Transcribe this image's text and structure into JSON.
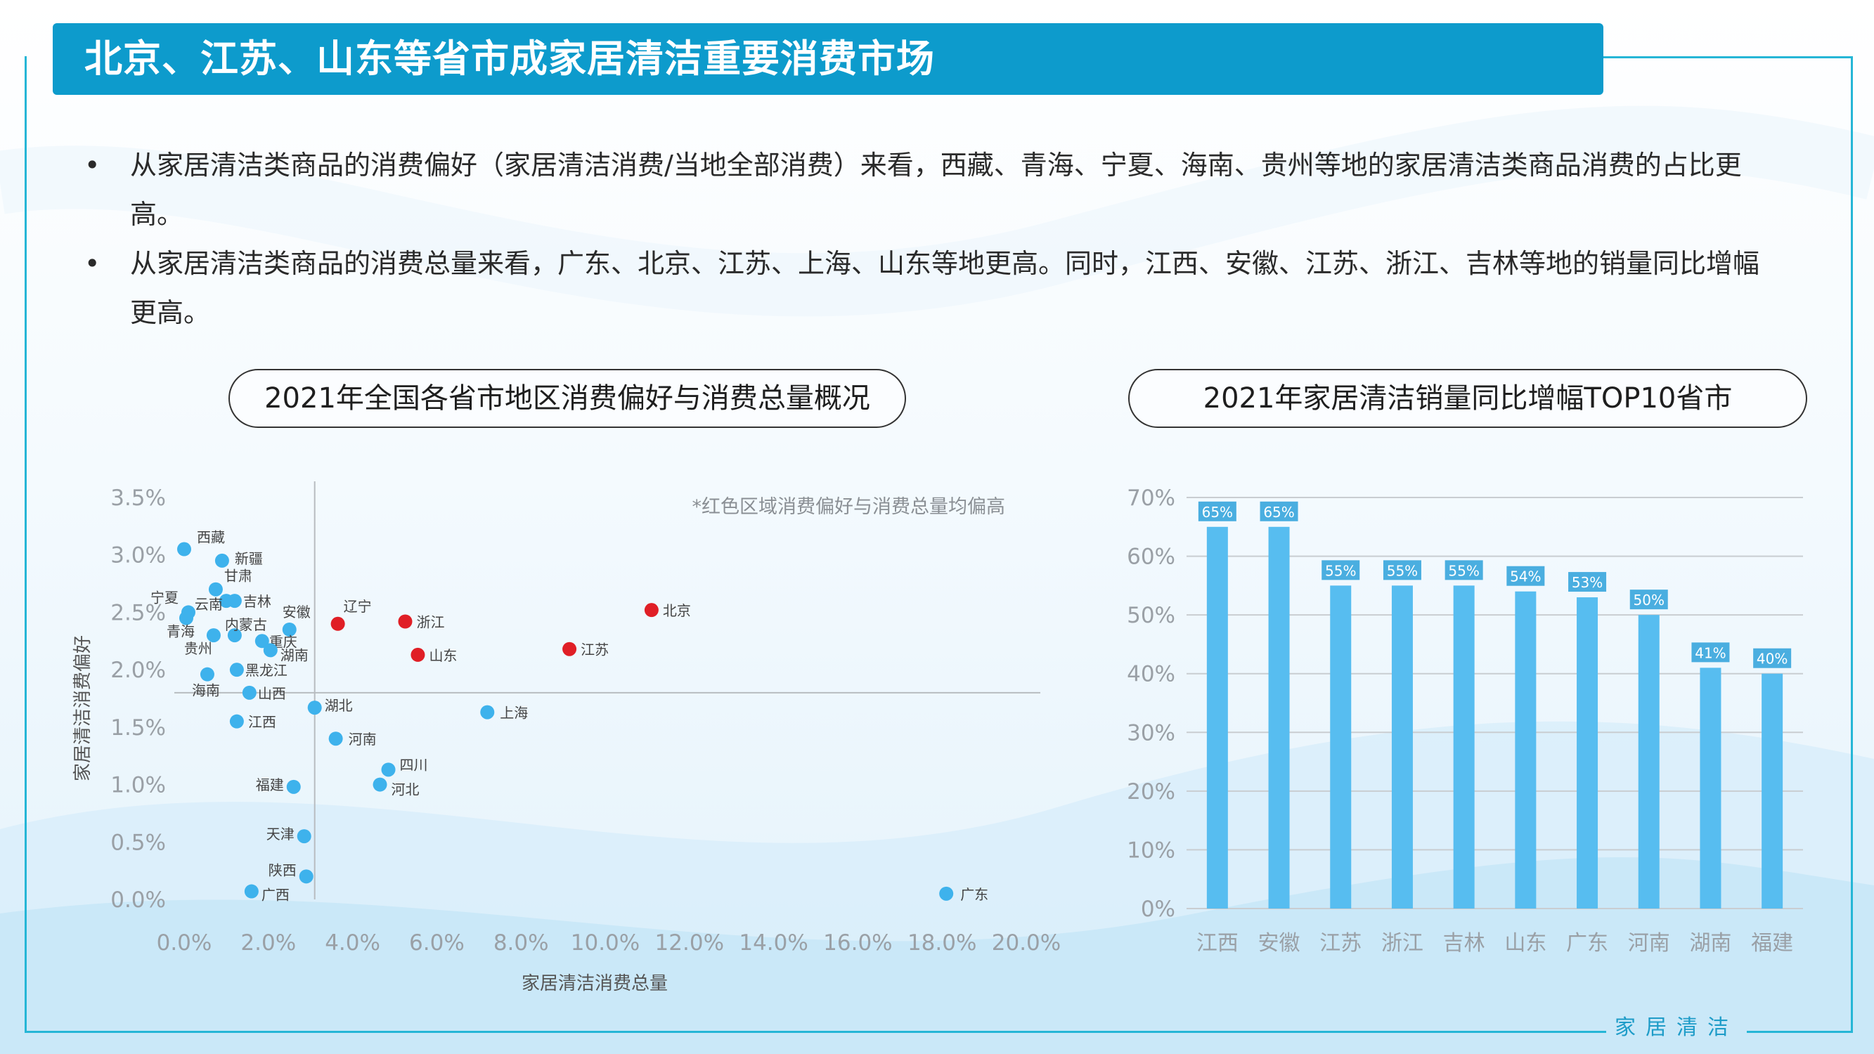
{
  "page": {
    "title": "北京、江苏、山东等省市成家居清洁重要消费市场",
    "bullets": [
      "从家居清洁类商品的消费偏好（家居清洁消费/当地全部消费）来看，西藏、青海、宁夏、海南、贵州等地的家居清洁类商品消费的占比更高。",
      "从家居清洁类商品的消费总量来看，广东、北京、江苏、上海、山东等地更高。同时，江西、安徽、江苏、浙江、吉林等地的销量同比增幅更高。"
    ],
    "footer": "家居清洁"
  },
  "chart_data": [
    {
      "type": "scatter",
      "title": "2021年全国各省市地区消费偏好与消费总量概况",
      "xlabel": "家居清洁消费总量",
      "ylabel": "家居清洁消费偏好",
      "annotation": "*红色区域消费偏好与消费总量均偏高",
      "xlim": [
        0,
        20
      ],
      "ylim": [
        0,
        3.5
      ],
      "x_ticks": [
        "0.0%",
        "2.0%",
        "4.0%",
        "6.0%",
        "8.0%",
        "10.0%",
        "12.0%",
        "14.0%",
        "16.0%",
        "18.0%",
        "20.0%"
      ],
      "y_ticks": [
        "0.0%",
        "0.5%",
        "1.0%",
        "1.5%",
        "2.0%",
        "2.5%",
        "3.0%",
        "3.5%"
      ],
      "reference_lines": {
        "x": 3.1,
        "y": 1.8
      },
      "colors": {
        "normal": "#3eb2ec",
        "highlight": "#e01f26"
      },
      "points": [
        {
          "name": "西藏",
          "x": 0.0,
          "y": 3.05,
          "highlight": false
        },
        {
          "name": "新疆",
          "x": 0.9,
          "y": 2.95,
          "highlight": false
        },
        {
          "name": "甘肃",
          "x": 0.75,
          "y": 2.7,
          "highlight": false
        },
        {
          "name": "宁夏",
          "x": 0.1,
          "y": 2.5,
          "highlight": false
        },
        {
          "name": "云南",
          "x": 1.0,
          "y": 2.6,
          "highlight": false
        },
        {
          "name": "吉林",
          "x": 1.2,
          "y": 2.6,
          "highlight": false
        },
        {
          "name": "安徽",
          "x": 2.5,
          "y": 2.35,
          "highlight": false
        },
        {
          "name": "青海",
          "x": 0.05,
          "y": 2.45,
          "highlight": false
        },
        {
          "name": "内蒙古",
          "x": 1.2,
          "y": 2.3,
          "highlight": false
        },
        {
          "name": "贵州",
          "x": 0.7,
          "y": 2.3,
          "highlight": false
        },
        {
          "name": "重庆",
          "x": 1.85,
          "y": 2.25,
          "highlight": false
        },
        {
          "name": "湖南",
          "x": 2.05,
          "y": 2.17,
          "highlight": false
        },
        {
          "name": "黑龙江",
          "x": 1.25,
          "y": 2.0,
          "highlight": false
        },
        {
          "name": "海南",
          "x": 0.55,
          "y": 1.96,
          "highlight": false
        },
        {
          "name": "山西",
          "x": 1.55,
          "y": 1.8,
          "highlight": false
        },
        {
          "name": "湖北",
          "x": 3.1,
          "y": 1.67,
          "highlight": false
        },
        {
          "name": "江西",
          "x": 1.25,
          "y": 1.55,
          "highlight": false
        },
        {
          "name": "河南",
          "x": 3.6,
          "y": 1.4,
          "highlight": false
        },
        {
          "name": "四川",
          "x": 4.85,
          "y": 1.13,
          "highlight": false
        },
        {
          "name": "河北",
          "x": 4.65,
          "y": 1.0,
          "highlight": false
        },
        {
          "name": "福建",
          "x": 2.6,
          "y": 0.98,
          "highlight": false
        },
        {
          "name": "上海",
          "x": 7.2,
          "y": 1.63,
          "highlight": false
        },
        {
          "name": "天津",
          "x": 2.85,
          "y": 0.55,
          "highlight": false
        },
        {
          "name": "陕西",
          "x": 2.9,
          "y": 0.2,
          "highlight": false
        },
        {
          "name": "广西",
          "x": 1.6,
          "y": 0.07,
          "highlight": false
        },
        {
          "name": "广东",
          "x": 18.1,
          "y": 0.05,
          "highlight": false
        },
        {
          "name": "辽宁",
          "x": 3.65,
          "y": 2.4,
          "highlight": true
        },
        {
          "name": "浙江",
          "x": 5.25,
          "y": 2.42,
          "highlight": true
        },
        {
          "name": "山东",
          "x": 5.55,
          "y": 2.13,
          "highlight": true
        },
        {
          "name": "江苏",
          "x": 9.15,
          "y": 2.18,
          "highlight": true
        },
        {
          "name": "北京",
          "x": 11.1,
          "y": 2.52,
          "highlight": true
        }
      ]
    },
    {
      "type": "bar",
      "title": "2021年家居清洁销量同比增幅TOP10省市",
      "categories": [
        "江西",
        "安徽",
        "江苏",
        "浙江",
        "吉林",
        "山东",
        "广东",
        "河南",
        "湖南",
        "福建"
      ],
      "values": [
        65,
        65,
        55,
        55,
        55,
        54,
        53,
        50,
        41,
        40
      ],
      "data_labels": [
        "65%",
        "65%",
        "55%",
        "55%",
        "55%",
        "54%",
        "53%",
        "50%",
        "41%",
        "40%"
      ],
      "ylim": [
        0,
        70
      ],
      "y_ticks": [
        "0%",
        "10%",
        "20%",
        "30%",
        "40%",
        "50%",
        "60%",
        "70%"
      ],
      "grid": true,
      "bar_color": "#57bdf0"
    }
  ]
}
